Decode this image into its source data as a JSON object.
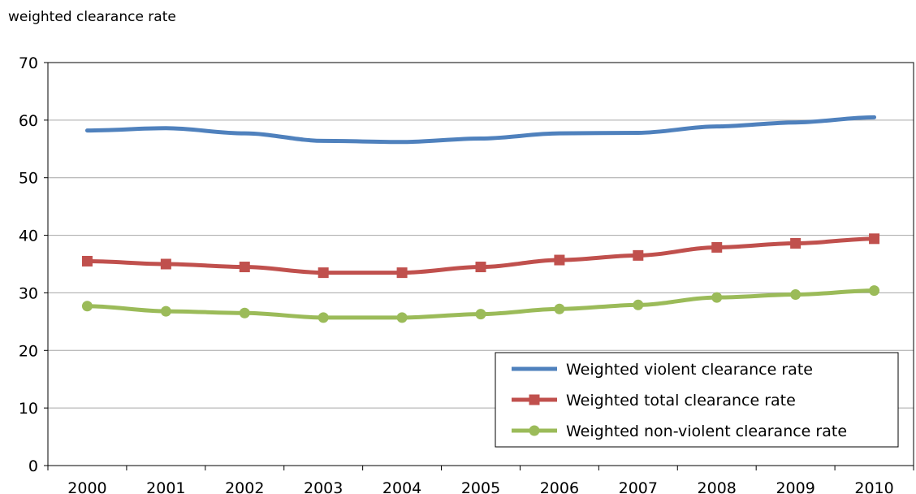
{
  "chart_data": {
    "type": "line",
    "title": "",
    "ylabel": "weighted clearance rate",
    "xlabel": "",
    "categories": [
      "2000",
      "2001",
      "2002",
      "2003",
      "2004",
      "2005",
      "2006",
      "2007",
      "2008",
      "2009",
      "2010"
    ],
    "ylim": [
      0,
      70
    ],
    "yticks": [
      0,
      10,
      20,
      30,
      40,
      50,
      60,
      70
    ],
    "grid": true,
    "legend_position": "bottom-right",
    "series": [
      {
        "name": "Weighted violent clearance rate",
        "color": "#4f81bd",
        "marker": "none",
        "values": [
          58.2,
          58.6,
          57.7,
          56.4,
          56.2,
          56.8,
          57.7,
          57.8,
          58.9,
          59.6,
          60.5
        ]
      },
      {
        "name": "Weighted total clearance rate",
        "color": "#c0504d",
        "marker": "square",
        "values": [
          35.5,
          35.0,
          34.5,
          33.5,
          33.5,
          34.5,
          35.7,
          36.5,
          37.9,
          38.6,
          39.4
        ]
      },
      {
        "name": "Weighted non-violent clearance rate",
        "color": "#9bbb59",
        "marker": "circle",
        "values": [
          27.7,
          26.8,
          26.5,
          25.7,
          25.7,
          26.3,
          27.2,
          27.9,
          29.2,
          29.7,
          30.4
        ]
      }
    ]
  }
}
